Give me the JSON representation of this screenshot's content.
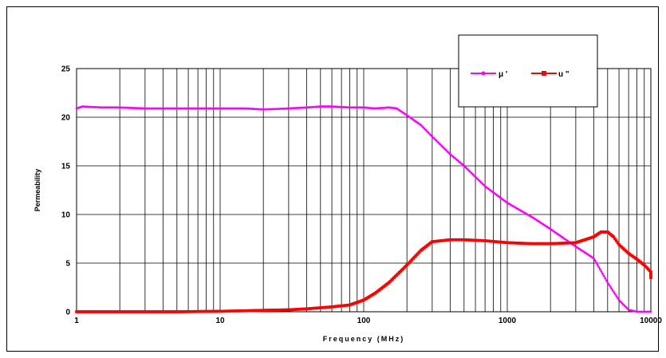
{
  "chart_data": {
    "type": "line",
    "title": "",
    "xlabel": "Frequency (MHz)",
    "ylabel": "Permeability",
    "xscale": "log",
    "xlim": [
      1,
      10000
    ],
    "ylim": [
      0,
      25
    ],
    "xticks": [
      1,
      10,
      100,
      1000,
      10000
    ],
    "xtick_labels": [
      "1",
      "10",
      "100",
      "1000",
      "10000"
    ],
    "yticks": [
      0,
      5,
      10,
      15,
      20,
      25
    ],
    "ytick_labels": [
      "0",
      "5",
      "10",
      "15",
      "20",
      "25"
    ],
    "grid": true,
    "legend_position": "top-right",
    "series": [
      {
        "name": "μ '",
        "color": "#ff00ff",
        "marker": "circle",
        "x": [
          1,
          1.1,
          1.5,
          2,
          3,
          5,
          7,
          10,
          15,
          20,
          30,
          40,
          50,
          60,
          80,
          100,
          120,
          150,
          170,
          200,
          250,
          300,
          400,
          500,
          700,
          1000,
          1500,
          2000,
          3000,
          4000,
          5000,
          6000,
          7000,
          8000,
          9000,
          10000
        ],
        "y": [
          20.9,
          21.1,
          21.0,
          21.0,
          20.9,
          20.9,
          20.9,
          20.9,
          20.9,
          20.8,
          20.9,
          21.0,
          21.1,
          21.1,
          21.0,
          21.0,
          20.9,
          21.0,
          20.9,
          20.2,
          19.2,
          18.0,
          16.2,
          15.0,
          12.9,
          11.2,
          9.7,
          8.5,
          6.7,
          5.5,
          3.0,
          1.2,
          0.2,
          0.0,
          0.0,
          0.0
        ]
      },
      {
        "name": "u \"",
        "color": "#ff0000",
        "marker": "square",
        "x": [
          1,
          2,
          5,
          10,
          15,
          20,
          30,
          40,
          60,
          80,
          100,
          120,
          150,
          200,
          250,
          300,
          400,
          500,
          700,
          1000,
          1500,
          2000,
          3000,
          4000,
          4500,
          5000,
          5500,
          6000,
          7000,
          8000,
          9000,
          10000,
          11000
        ],
        "y": [
          0.0,
          0.0,
          0.0,
          0.05,
          0.1,
          0.15,
          0.2,
          0.3,
          0.5,
          0.7,
          1.2,
          1.9,
          3.0,
          4.8,
          6.3,
          7.2,
          7.4,
          7.4,
          7.3,
          7.1,
          7.0,
          7.0,
          7.1,
          7.7,
          8.2,
          8.2,
          7.7,
          6.9,
          6.0,
          5.4,
          4.8,
          4.1,
          3.5
        ]
      }
    ]
  }
}
